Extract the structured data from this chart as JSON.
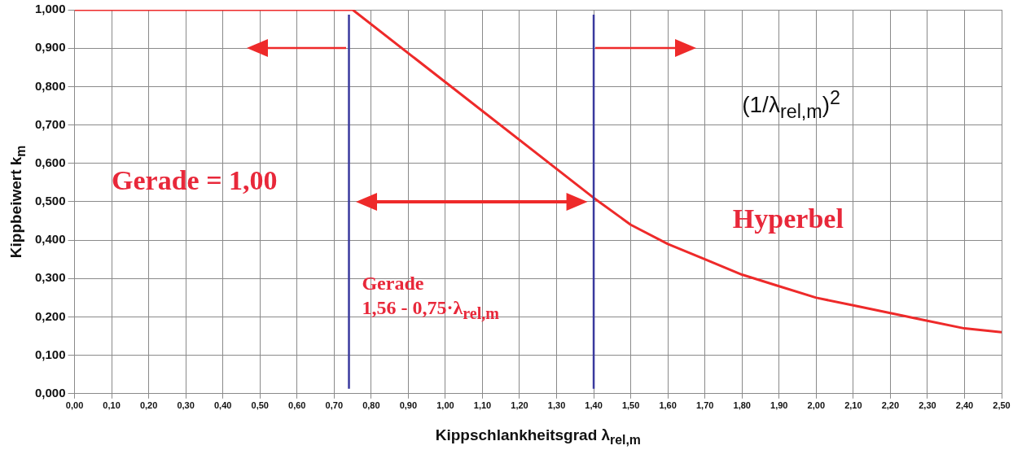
{
  "chart_data": {
    "type": "line",
    "xlabel": "Kippschlankheitsgrad λ$_{rel,m}$",
    "ylabel": "Kippbeiwert k$_{m}$",
    "series": [
      {
        "color": "#ee2a2a",
        "x": [
          0,
          0.75,
          1.4,
          1.5,
          1.6,
          1.7,
          1.8,
          1.9,
          2.0,
          2.1,
          2.2,
          2.3,
          2.4,
          2.5
        ],
        "values": [
          1.0,
          1.0,
          0.51,
          0.44,
          0.39,
          0.35,
          0.31,
          0.28,
          0.25,
          0.23,
          0.21,
          0.19,
          0.17,
          0.16
        ]
      }
    ],
    "xlim": [
      0,
      2.5
    ],
    "ylim": [
      0,
      1
    ],
    "xticks": [
      {
        "value": 0,
        "label": "0,00"
      },
      {
        "value": 0.1,
        "label": "0,10"
      },
      {
        "value": 0.2,
        "label": "0,20"
      },
      {
        "value": 0.3,
        "label": "0,30"
      },
      {
        "value": 0.4,
        "label": "0,40"
      },
      {
        "value": 0.5,
        "label": "0,50"
      },
      {
        "value": 0.6,
        "label": "0,60"
      },
      {
        "value": 0.7,
        "label": "0,70"
      },
      {
        "value": 0.8,
        "label": "0,80"
      },
      {
        "value": 0.9,
        "label": "0,90"
      },
      {
        "value": 1.0,
        "label": "1,00"
      },
      {
        "value": 1.1,
        "label": "1,10"
      },
      {
        "value": 1.2,
        "label": "1,20"
      },
      {
        "value": 1.3,
        "label": "1,30"
      },
      {
        "value": 1.4,
        "label": "1,40"
      },
      {
        "value": 1.5,
        "label": "1,50"
      },
      {
        "value": 1.6,
        "label": "1,60"
      },
      {
        "value": 1.7,
        "label": "1,70"
      },
      {
        "value": 1.8,
        "label": "1,80"
      },
      {
        "value": 1.9,
        "label": "1,90"
      },
      {
        "value": 2.0,
        "label": "2,00"
      },
      {
        "value": 2.1,
        "label": "2,10"
      },
      {
        "value": 2.2,
        "label": "2,20"
      },
      {
        "value": 2.3,
        "label": "2,30"
      },
      {
        "value": 2.4,
        "label": "2,40"
      },
      {
        "value": 2.5,
        "label": "2,50"
      }
    ],
    "yticks": [
      {
        "value": 0,
        "label": "0,000"
      },
      {
        "value": 0.1,
        "label": "0,100"
      },
      {
        "value": 0.2,
        "label": "0,200"
      },
      {
        "value": 0.3,
        "label": "0,300"
      },
      {
        "value": 0.4,
        "label": "0,400"
      },
      {
        "value": 0.5,
        "label": "0,500"
      },
      {
        "value": 0.6,
        "label": "0,600"
      },
      {
        "value": 0.7,
        "label": "0,700"
      },
      {
        "value": 0.8,
        "label": "0,800"
      },
      {
        "value": 0.9,
        "label": "0,900"
      },
      {
        "value": 1.0,
        "label": "1,000"
      }
    ],
    "ref_lines": [
      {
        "axis": "x",
        "value": 0.74,
        "color": "#3a3a9e"
      },
      {
        "axis": "x",
        "value": 1.4,
        "color": "#3a3a9e"
      }
    ],
    "annotations": [
      "Gerade = 1,00",
      "Gerade\n1,56 - 0,75·λ$_{rel,m}$",
      "Hyperbel",
      "(1/λ$_{rel,m}$)$^{2}$"
    ],
    "grid": true,
    "legend": false,
    "marker": "none",
    "line_style": "solid"
  }
}
